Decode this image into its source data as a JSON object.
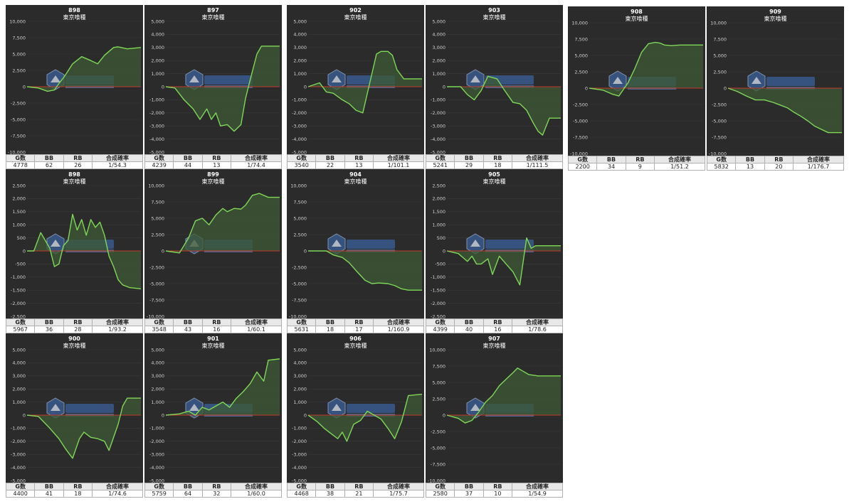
{
  "headers": {
    "g": "G数",
    "bb": "BB",
    "rb": "RB",
    "rate": "合成確率"
  },
  "colors": {
    "background": "#2b2b2b",
    "line": "#7ed957",
    "fill": "#3d5a34",
    "zero_line": "#c0392b",
    "grid": "#3a3a3a"
  },
  "chart_data": [
    {
      "id": "c898a",
      "type": "area",
      "number": "898",
      "name": "東京喰種",
      "ylim": [
        -10000,
        10000
      ],
      "yticks": [
        10000,
        7500,
        5000,
        2500,
        0,
        -2500,
        -5000,
        -7500,
        -10000
      ],
      "x": [
        0,
        10,
        18,
        24,
        28,
        33,
        40,
        48,
        56,
        62,
        68,
        76,
        80,
        88,
        100
      ],
      "y": [
        0,
        -200,
        -700,
        -500,
        500,
        1600,
        3500,
        4600,
        4000,
        3500,
        4800,
        6000,
        6100,
        5800,
        6000
      ],
      "stats": {
        "g": "4778",
        "bb": "62",
        "rb": "26",
        "rate": "1/54.3"
      }
    },
    {
      "id": "c897",
      "type": "area",
      "number": "897",
      "name": "東京喰種",
      "ylim": [
        -5000,
        5000
      ],
      "yticks": [
        5000,
        4000,
        3000,
        2000,
        1000,
        0,
        -1000,
        -2000,
        -3000,
        -4000,
        -5000
      ],
      "x": [
        0,
        8,
        16,
        24,
        30,
        36,
        40,
        44,
        48,
        54,
        60,
        66,
        70,
        74,
        80,
        84,
        90,
        100
      ],
      "y": [
        0,
        -100,
        -1000,
        -1700,
        -2500,
        -1700,
        -2500,
        -2000,
        -3000,
        -2900,
        -3400,
        -2900,
        -900,
        500,
        2500,
        3100,
        3100,
        3100
      ],
      "stats": {
        "g": "4239",
        "bb": "44",
        "rb": "13",
        "rate": "1/74.4"
      }
    },
    {
      "id": "c902",
      "type": "area",
      "number": "902",
      "name": "東京喰種",
      "ylim": [
        -5000,
        5000
      ],
      "yticks": [
        5000,
        4000,
        3000,
        2000,
        1000,
        0,
        -1000,
        -2000,
        -3000,
        -4000,
        -5000
      ],
      "x": [
        0,
        10,
        16,
        22,
        30,
        36,
        42,
        48,
        52,
        56,
        60,
        64,
        70,
        74,
        78,
        84,
        100
      ],
      "y": [
        0,
        300,
        -400,
        -500,
        -1000,
        -1300,
        -1800,
        -2000,
        -500,
        1000,
        2500,
        2700,
        2700,
        2400,
        1300,
        600,
        600
      ],
      "stats": {
        "g": "3540",
        "bb": "22",
        "rb": "13",
        "rate": "1/101.1"
      }
    },
    {
      "id": "c903",
      "type": "area",
      "number": "903",
      "name": "東京喰種",
      "ylim": [
        -5000,
        5000
      ],
      "yticks": [
        5000,
        4000,
        3000,
        2000,
        1000,
        0,
        -1000,
        -2000,
        -3000,
        -4000,
        -5000
      ],
      "x": [
        0,
        12,
        18,
        24,
        30,
        36,
        44,
        50,
        58,
        64,
        70,
        76,
        80,
        84,
        90,
        100
      ],
      "y": [
        0,
        0,
        -600,
        -1000,
        -300,
        800,
        600,
        -200,
        -1200,
        -1300,
        -1800,
        -2800,
        -3400,
        -3700,
        -2400,
        -2400
      ],
      "stats": {
        "g": "5241",
        "bb": "29",
        "rb": "18",
        "rate": "1/111.5"
      }
    },
    {
      "id": "c908",
      "type": "area",
      "number": "908",
      "name": "東京喰種",
      "ylim": [
        -10000,
        10000
      ],
      "yticks": [
        10000,
        7500,
        5000,
        2500,
        0,
        -2500,
        -5000,
        -7500,
        -10000
      ],
      "x": [
        0,
        12,
        20,
        26,
        30,
        34,
        40,
        46,
        52,
        58,
        62,
        66,
        72,
        80,
        100
      ],
      "y": [
        0,
        -300,
        -900,
        -1200,
        -200,
        800,
        3000,
        5500,
        6800,
        7000,
        6900,
        6600,
        6500,
        6600,
        6600
      ],
      "stats": {
        "g": "2200",
        "bb": "34",
        "rb": "9",
        "rate": "1/51.2"
      }
    },
    {
      "id": "c909",
      "type": "area",
      "number": "909",
      "name": "東京喰種",
      "ylim": [
        -10000,
        10000
      ],
      "yticks": [
        10000,
        7500,
        5000,
        2500,
        0,
        -2500,
        -5000,
        -7500,
        -10000
      ],
      "x": [
        0,
        8,
        16,
        24,
        32,
        40,
        46,
        52,
        58,
        64,
        70,
        76,
        82,
        88,
        100
      ],
      "y": [
        0,
        -500,
        -1200,
        -1800,
        -1800,
        -2200,
        -2600,
        -3000,
        -3700,
        -4300,
        -5000,
        -5800,
        -6300,
        -6800,
        -6800
      ],
      "stats": {
        "g": "5832",
        "bb": "13",
        "rb": "20",
        "rate": "1/176.7"
      }
    },
    {
      "id": "c898b",
      "type": "area",
      "number": "898",
      "name": "東京喰種",
      "ylim": [
        -2500,
        2500
      ],
      "yticks": [
        2500,
        2000,
        1500,
        1000,
        500,
        0,
        -500,
        -1000,
        -1500,
        -2000,
        -2500
      ],
      "x": [
        0,
        6,
        12,
        16,
        20,
        24,
        28,
        32,
        36,
        40,
        44,
        48,
        52,
        56,
        60,
        64,
        68,
        72,
        76,
        80,
        84,
        90,
        100
      ],
      "y": [
        0,
        0,
        700,
        400,
        100,
        -600,
        -500,
        200,
        400,
        1400,
        800,
        1200,
        600,
        1200,
        900,
        1100,
        600,
        -200,
        -600,
        -1100,
        -1300,
        -1400,
        -1450
      ],
      "stats": {
        "g": "5967",
        "bb": "36",
        "rb": "28",
        "rate": "1/93.2"
      }
    },
    {
      "id": "c899",
      "type": "area",
      "number": "899",
      "name": "東京喰種",
      "ylim": [
        -10000,
        10000
      ],
      "yticks": [
        10000,
        7500,
        5000,
        2500,
        0,
        -2500,
        -5000,
        -7500,
        -10000
      ],
      "x": [
        0,
        12,
        20,
        26,
        32,
        38,
        44,
        50,
        54,
        60,
        66,
        70,
        76,
        82,
        90,
        100
      ],
      "y": [
        0,
        -300,
        2000,
        4600,
        5000,
        4000,
        5500,
        6500,
        6000,
        6500,
        6400,
        7000,
        8500,
        8800,
        8200,
        8200
      ],
      "stats": {
        "g": "3548",
        "bb": "43",
        "rb": "16",
        "rate": "1/60.1"
      }
    },
    {
      "id": "c904",
      "type": "area",
      "number": "904",
      "name": "東京喰種",
      "ylim": [
        -10000,
        10000
      ],
      "yticks": [
        10000,
        7500,
        5000,
        2500,
        0,
        -2500,
        -5000,
        -7500,
        -10000
      ],
      "x": [
        0,
        16,
        22,
        30,
        36,
        42,
        50,
        56,
        62,
        70,
        76,
        82,
        88,
        100
      ],
      "y": [
        0,
        0,
        -600,
        -1000,
        -1800,
        -3000,
        -4500,
        -5000,
        -4900,
        -5000,
        -5300,
        -5800,
        -6000,
        -6000
      ],
      "stats": {
        "g": "5631",
        "bb": "18",
        "rb": "17",
        "rate": "1/160.9"
      }
    },
    {
      "id": "c905",
      "type": "area",
      "number": "905",
      "name": "東京喰種",
      "ylim": [
        -2500,
        2500
      ],
      "yticks": [
        2500,
        2000,
        1500,
        1000,
        500,
        0,
        -500,
        -1000,
        -1500,
        -2000,
        -2500
      ],
      "x": [
        0,
        10,
        18,
        22,
        26,
        30,
        36,
        40,
        46,
        52,
        58,
        64,
        70,
        74,
        78,
        82,
        100
      ],
      "y": [
        0,
        -100,
        -400,
        -200,
        -500,
        -500,
        -300,
        -900,
        -200,
        -500,
        -800,
        -1300,
        500,
        100,
        200,
        200,
        200
      ],
      "stats": {
        "g": "4399",
        "bb": "40",
        "rb": "16",
        "rate": "1/78.6"
      }
    },
    {
      "id": "c900",
      "type": "area",
      "number": "900",
      "name": "東京喰種",
      "ylim": [
        -5000,
        5000
      ],
      "yticks": [
        5000,
        4000,
        3000,
        2000,
        1000,
        0,
        -1000,
        -2000,
        -3000,
        -4000,
        -5000
      ],
      "x": [
        0,
        10,
        20,
        28,
        34,
        40,
        46,
        50,
        56,
        62,
        68,
        72,
        76,
        80,
        84,
        88,
        100
      ],
      "y": [
        0,
        -100,
        -1000,
        -1800,
        -2600,
        -3300,
        -1800,
        -1300,
        -1700,
        -1800,
        -2000,
        -2700,
        -1700,
        -700,
        700,
        1300,
        1300
      ],
      "stats": {
        "g": "4400",
        "bb": "41",
        "rb": "18",
        "rate": "1/74.6"
      }
    },
    {
      "id": "c901",
      "type": "area",
      "number": "901",
      "name": "東京喰種",
      "ylim": [
        -5000,
        5000
      ],
      "yticks": [
        5000,
        4000,
        3000,
        2000,
        1000,
        0,
        -1000,
        -2000,
        -3000,
        -4000,
        -5000
      ],
      "x": [
        0,
        12,
        20,
        26,
        32,
        38,
        44,
        50,
        56,
        62,
        68,
        74,
        80,
        86,
        90,
        100
      ],
      "y": [
        0,
        100,
        300,
        0,
        600,
        400,
        700,
        1000,
        600,
        1300,
        1800,
        2400,
        3300,
        2600,
        4200,
        4300
      ],
      "stats": {
        "g": "5759",
        "bb": "64",
        "rb": "32",
        "rate": "1/60.0"
      }
    },
    {
      "id": "c906",
      "type": "area",
      "number": "906",
      "name": "東京喰種",
      "ylim": [
        -5000,
        5000
      ],
      "yticks": [
        5000,
        4000,
        3000,
        2000,
        1000,
        0,
        -1000,
        -2000,
        -3000,
        -4000,
        -5000
      ],
      "x": [
        0,
        8,
        14,
        20,
        26,
        30,
        34,
        40,
        46,
        52,
        58,
        64,
        70,
        76,
        82,
        88,
        100
      ],
      "y": [
        0,
        -500,
        -1000,
        -1400,
        -1800,
        -1300,
        -2000,
        -700,
        -400,
        300,
        0,
        -300,
        -1000,
        -1800,
        -500,
        1500,
        1600
      ],
      "stats": {
        "g": "4468",
        "bb": "38",
        "rb": "21",
        "rate": "1/75.7"
      }
    },
    {
      "id": "c907",
      "type": "area",
      "number": "907",
      "name": "東京喰種",
      "ylim": [
        -10000,
        10000
      ],
      "yticks": [
        10000,
        7500,
        5000,
        2500,
        0,
        -2500,
        -5000,
        -7500,
        -10000
      ],
      "x": [
        0,
        10,
        16,
        22,
        28,
        34,
        40,
        46,
        52,
        58,
        62,
        66,
        72,
        80,
        90,
        100
      ],
      "y": [
        0,
        -500,
        -1200,
        -800,
        500,
        2000,
        3000,
        4500,
        5500,
        6500,
        7200,
        6800,
        6200,
        6000,
        6000,
        6000
      ],
      "stats": {
        "g": "2580",
        "bb": "37",
        "rb": "10",
        "rate": "1/54.9"
      }
    }
  ]
}
